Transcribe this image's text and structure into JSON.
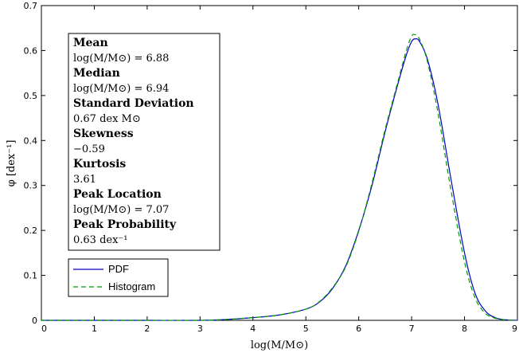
{
  "chart_data": {
    "type": "line",
    "xlabel": "log(M/M⊙)",
    "ylabel": "φ [dex⁻¹]",
    "xlim": [
      0,
      9
    ],
    "ylim": [
      0,
      0.7
    ],
    "xticks": [
      "0",
      "1",
      "2",
      "3",
      "4",
      "5",
      "6",
      "7",
      "8",
      "9"
    ],
    "yticks": [
      "0",
      "0.1",
      "0.2",
      "0.3",
      "0.4",
      "0.5",
      "0.6",
      "0.7"
    ],
    "legend_placement": "lower-left",
    "series": [
      {
        "name": "PDF",
        "color": "#0000cc",
        "style": "solid",
        "x": [
          0,
          1,
          2,
          3,
          3.5,
          4,
          4.5,
          5,
          5.25,
          5.5,
          5.75,
          6,
          6.25,
          6.5,
          6.75,
          6.9,
          7.0,
          7.07,
          7.15,
          7.3,
          7.5,
          7.75,
          8.0,
          8.2,
          8.4,
          8.6,
          8.8,
          9
        ],
        "y": [
          0,
          0,
          0,
          0,
          0.002,
          0.006,
          0.012,
          0.025,
          0.04,
          0.07,
          0.12,
          0.2,
          0.3,
          0.42,
          0.53,
          0.59,
          0.62,
          0.626,
          0.62,
          0.58,
          0.48,
          0.31,
          0.15,
          0.06,
          0.02,
          0.005,
          0.001,
          0
        ]
      },
      {
        "name": "Histogram",
        "color": "#009900",
        "style": "dashed",
        "x": [
          0,
          1,
          2,
          3,
          3.5,
          4,
          4.5,
          5,
          5.25,
          5.5,
          5.75,
          6,
          6.25,
          6.5,
          6.75,
          6.9,
          7.0,
          7.07,
          7.15,
          7.3,
          7.5,
          7.75,
          8.0,
          8.2,
          8.4,
          8.6,
          8.8,
          9
        ],
        "y": [
          0,
          0,
          0,
          0,
          0.002,
          0.006,
          0.012,
          0.025,
          0.041,
          0.072,
          0.118,
          0.198,
          0.305,
          0.425,
          0.535,
          0.6,
          0.632,
          0.635,
          0.625,
          0.575,
          0.46,
          0.285,
          0.13,
          0.05,
          0.015,
          0.004,
          0.001,
          0
        ]
      }
    ]
  },
  "stats": [
    {
      "label": "Mean",
      "value": "log(M/M⊙) = 6.88"
    },
    {
      "label": "Median",
      "value": "log(M/M⊙) = 6.94"
    },
    {
      "label": "Standard Deviation",
      "value": "0.67 dex M⊙"
    },
    {
      "label": "Skewness",
      "value": "−0.59"
    },
    {
      "label": "Kurtosis",
      "value": "3.61"
    },
    {
      "label": "Peak Location",
      "value": "log(M/M⊙) = 7.07"
    },
    {
      "label": "Peak Probability",
      "value": "0.63 dex⁻¹"
    }
  ]
}
